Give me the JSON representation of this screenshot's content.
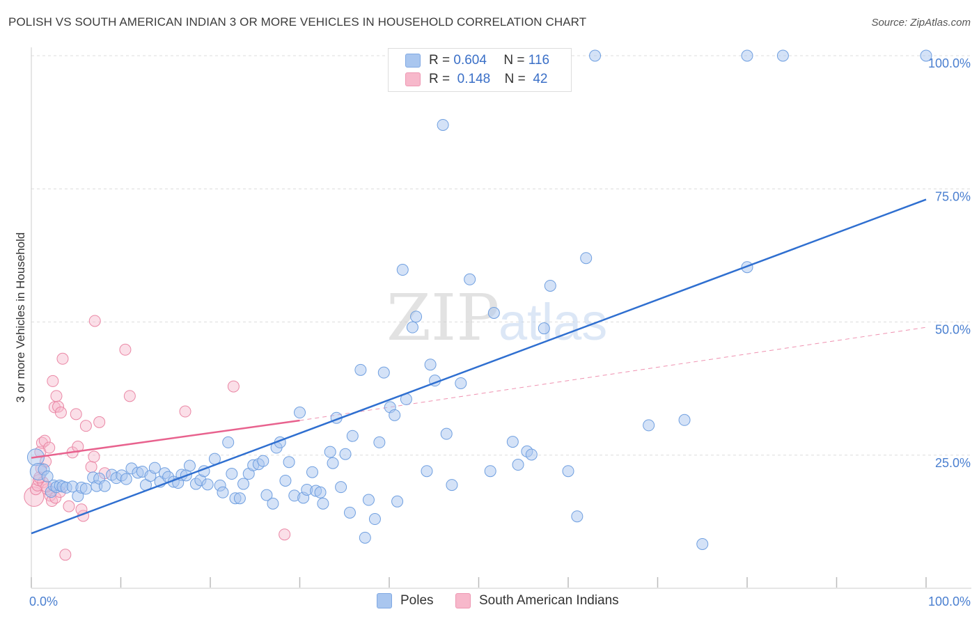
{
  "title": "POLISH VS SOUTH AMERICAN INDIAN 3 OR MORE VEHICLES IN HOUSEHOLD CORRELATION CHART",
  "source": "Source: ZipAtlas.com",
  "watermark": {
    "bold": "ZIP",
    "light": "atlas"
  },
  "legend_stats": [
    {
      "r_label": "R =",
      "r_value": "0.604",
      "n_label": "N =",
      "n_value": "116",
      "color": "#a9c6ef"
    },
    {
      "r_label": "R =",
      "r_value": "0.148",
      "n_label": "N =",
      "n_value": "42",
      "color": "#f7b8cb"
    }
  ],
  "bottom_legend": [
    {
      "label": "Poles",
      "color": "#a9c6ef"
    },
    {
      "label": "South American Indians",
      "color": "#f7b8cb"
    }
  ],
  "chart_data": {
    "type": "scatter",
    "title": "POLISH VS SOUTH AMERICAN INDIAN 3 OR MORE VEHICLES IN HOUSEHOLD CORRELATION CHART",
    "xlabel": "",
    "ylabel": "3 or more Vehicles in Household",
    "xlim": [
      0,
      100
    ],
    "ylim": [
      0,
      100
    ],
    "x_tick_labels": [
      "0.0%",
      "100.0%"
    ],
    "y_tick_values": [
      25,
      50,
      75,
      100
    ],
    "y_tick_labels": [
      "25.0%",
      "50.0%",
      "75.0%",
      "100.0%"
    ],
    "grid": true,
    "legend_position": "top-center",
    "series": [
      {
        "name": "Poles",
        "color": "#a9c6ef",
        "stroke": "#6f9fe0",
        "trend": {
          "x": [
            0,
            100
          ],
          "y": [
            10.3,
            73.0
          ],
          "color": "#2f6fd0"
        },
        "points": [
          [
            0.5,
            24.6
          ],
          [
            0.8,
            21.9
          ],
          [
            1.4,
            22.3
          ],
          [
            1.8,
            21.0
          ],
          [
            2.2,
            18.1
          ],
          [
            2.5,
            19.3
          ],
          [
            2.8,
            19.0
          ],
          [
            3.2,
            19.3
          ],
          [
            3.5,
            19.1
          ],
          [
            3.9,
            18.9
          ],
          [
            4.6,
            19.1
          ],
          [
            5.2,
            17.3
          ],
          [
            5.6,
            18.9
          ],
          [
            6.1,
            18.7
          ],
          [
            6.9,
            20.8
          ],
          [
            7.3,
            19.2
          ],
          [
            7.6,
            20.6
          ],
          [
            8.2,
            19.2
          ],
          [
            9.0,
            21.3
          ],
          [
            9.5,
            20.7
          ],
          [
            10.1,
            21.2
          ],
          [
            10.6,
            20.5
          ],
          [
            11.2,
            22.5
          ],
          [
            11.9,
            21.7
          ],
          [
            12.4,
            21.9
          ],
          [
            12.8,
            19.4
          ],
          [
            13.3,
            21.1
          ],
          [
            13.8,
            22.6
          ],
          [
            14.4,
            20.0
          ],
          [
            14.9,
            21.6
          ],
          [
            15.3,
            20.9
          ],
          [
            15.9,
            20.0
          ],
          [
            16.4,
            19.8
          ],
          [
            16.8,
            21.3
          ],
          [
            17.3,
            21.2
          ],
          [
            17.7,
            23.0
          ],
          [
            18.4,
            19.6
          ],
          [
            18.9,
            20.3
          ],
          [
            19.3,
            22.0
          ],
          [
            19.7,
            19.5
          ],
          [
            20.5,
            24.3
          ],
          [
            21.1,
            19.3
          ],
          [
            21.4,
            18.0
          ],
          [
            22.0,
            27.4
          ],
          [
            22.4,
            21.5
          ],
          [
            22.8,
            16.9
          ],
          [
            23.3,
            16.9
          ],
          [
            23.7,
            19.6
          ],
          [
            24.3,
            21.5
          ],
          [
            24.8,
            23.1
          ],
          [
            25.4,
            23.3
          ],
          [
            25.9,
            23.9
          ],
          [
            26.3,
            17.5
          ],
          [
            27.0,
            15.9
          ],
          [
            27.4,
            26.4
          ],
          [
            27.8,
            27.4
          ],
          [
            28.4,
            20.2
          ],
          [
            28.8,
            23.7
          ],
          [
            29.4,
            17.4
          ],
          [
            30.0,
            33.0
          ],
          [
            30.4,
            17.0
          ],
          [
            30.8,
            18.5
          ],
          [
            31.4,
            21.8
          ],
          [
            31.8,
            18.3
          ],
          [
            32.3,
            18.0
          ],
          [
            32.6,
            15.9
          ],
          [
            33.4,
            25.6
          ],
          [
            33.7,
            23.5
          ],
          [
            34.1,
            32.0
          ],
          [
            34.6,
            19.0
          ],
          [
            35.1,
            25.2
          ],
          [
            35.6,
            14.2
          ],
          [
            35.9,
            28.6
          ],
          [
            36.8,
            41.0
          ],
          [
            37.3,
            9.5
          ],
          [
            37.7,
            16.6
          ],
          [
            38.4,
            13.0
          ],
          [
            38.9,
            27.4
          ],
          [
            39.4,
            40.5
          ],
          [
            40.1,
            34.0
          ],
          [
            40.6,
            32.5
          ],
          [
            40.9,
            16.3
          ],
          [
            41.5,
            59.8
          ],
          [
            41.9,
            35.5
          ],
          [
            42.6,
            49.0
          ],
          [
            43.0,
            51.0
          ],
          [
            44.2,
            22.0
          ],
          [
            44.6,
            42.0
          ],
          [
            45.1,
            39.0
          ],
          [
            46.0,
            87.0
          ],
          [
            46.4,
            29.0
          ],
          [
            47.0,
            19.4
          ],
          [
            48.0,
            38.5
          ],
          [
            50.5,
            100.0
          ],
          [
            49.0,
            58.0
          ],
          [
            51.3,
            22.0
          ],
          [
            51.7,
            51.7
          ],
          [
            52.7,
            100.0
          ],
          [
            53.5,
            100.0
          ],
          [
            53.8,
            27.5
          ],
          [
            54.4,
            23.2
          ],
          [
            55.4,
            25.7
          ],
          [
            55.9,
            25.1
          ],
          [
            57.3,
            48.8
          ],
          [
            58.0,
            56.8
          ],
          [
            60.0,
            22.0
          ],
          [
            61.0,
            13.5
          ],
          [
            62.0,
            62.0
          ],
          [
            63.0,
            100.0
          ],
          [
            69.0,
            30.6
          ],
          [
            73.0,
            31.6
          ],
          [
            75.0,
            8.3
          ],
          [
            80.0,
            60.3
          ],
          [
            80.0,
            100.0
          ],
          [
            84.0,
            100.0
          ],
          [
            100.0,
            100.0
          ]
        ]
      },
      {
        "name": "South American Indians",
        "color": "#f7b8cb",
        "stroke": "#ea87a5",
        "trend": {
          "x": [
            0,
            30
          ],
          "y": [
            24.5,
            31.5
          ],
          "dashed_to": [
            100,
            49.0
          ],
          "color": "#e8628e"
        },
        "points": [
          [
            0.3,
            17.2
          ],
          [
            0.5,
            18.6
          ],
          [
            0.7,
            19.3
          ],
          [
            0.8,
            20.3
          ],
          [
            1.0,
            25.6
          ],
          [
            1.1,
            22.5
          ],
          [
            1.2,
            27.3
          ],
          [
            1.3,
            19.9
          ],
          [
            1.5,
            27.7
          ],
          [
            1.6,
            23.8
          ],
          [
            1.8,
            18.6
          ],
          [
            2.0,
            26.4
          ],
          [
            2.1,
            17.4
          ],
          [
            2.3,
            16.4
          ],
          [
            2.4,
            38.9
          ],
          [
            2.6,
            34.0
          ],
          [
            2.7,
            17.0
          ],
          [
            2.8,
            36.1
          ],
          [
            3.0,
            34.1
          ],
          [
            3.2,
            18.1
          ],
          [
            3.3,
            33.0
          ],
          [
            3.5,
            43.1
          ],
          [
            3.8,
            6.3
          ],
          [
            4.2,
            15.4
          ],
          [
            4.6,
            25.5
          ],
          [
            5.0,
            32.7
          ],
          [
            5.2,
            26.6
          ],
          [
            5.8,
            13.6
          ],
          [
            6.1,
            30.5
          ],
          [
            6.7,
            22.8
          ],
          [
            7.0,
            24.7
          ],
          [
            7.1,
            50.2
          ],
          [
            7.6,
            31.2
          ],
          [
            8.2,
            21.6
          ],
          [
            10.5,
            44.8
          ],
          [
            11.0,
            36.1
          ],
          [
            17.2,
            33.2
          ],
          [
            22.6,
            37.9
          ],
          [
            28.3,
            10.1
          ],
          [
            1.7,
            19.1
          ],
          [
            5.6,
            14.8
          ],
          [
            0.9,
            20.8
          ]
        ]
      }
    ]
  }
}
